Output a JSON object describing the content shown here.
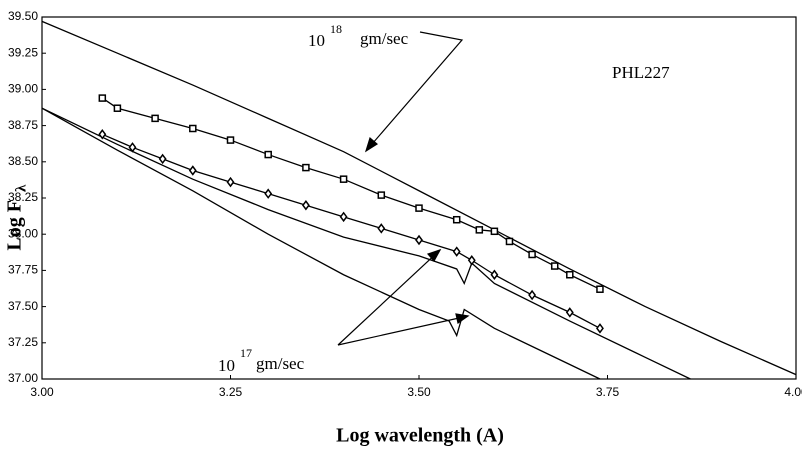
{
  "chart_data": {
    "type": "line",
    "x_label": "Log wavelength (A)",
    "y_label": {
      "text": "Log F",
      "sub": "λ"
    },
    "xlim": [
      3.0,
      4.0
    ],
    "ylim": [
      37.0,
      39.5
    ],
    "xticks": [
      {
        "value": 3.0,
        "label": "3.00"
      },
      {
        "value": 3.25,
        "label": "3.25"
      },
      {
        "value": 3.5,
        "label": "3.50"
      },
      {
        "value": 3.75,
        "label": "3.75"
      },
      {
        "value": 4.0,
        "label": "4.00"
      }
    ],
    "yticks": [
      {
        "value": 37.0,
        "label": "37.00"
      },
      {
        "value": 37.25,
        "label": "37.25"
      },
      {
        "value": 37.5,
        "label": "37.50"
      },
      {
        "value": 37.75,
        "label": "37.75"
      },
      {
        "value": 38.0,
        "label": "38.00"
      },
      {
        "value": 38.25,
        "label": "38.25"
      },
      {
        "value": 38.5,
        "label": "38.50"
      },
      {
        "value": 38.75,
        "label": "38.75"
      },
      {
        "value": 39.0,
        "label": "39.00"
      },
      {
        "value": 39.25,
        "label": "39.25"
      },
      {
        "value": 39.5,
        "label": "39.50"
      }
    ],
    "annotations": [
      {
        "text": "PHL227"
      },
      {
        "text": "10",
        "sup": "18",
        "unit": "gm/sec"
      },
      {
        "text": "10",
        "sup": "17",
        "unit": "gm/sec"
      }
    ],
    "series": [
      {
        "color": "#000000",
        "marker": "none",
        "x": [
          3.0,
          3.1,
          3.2,
          3.3,
          3.4,
          3.5,
          3.6,
          3.7,
          3.8,
          3.9,
          4.0
        ],
        "values": [
          39.47,
          39.25,
          39.03,
          38.8,
          38.57,
          38.3,
          38.03,
          37.76,
          37.5,
          37.26,
          37.03
        ]
      },
      {
        "color": "#000000",
        "marker": "none",
        "x": [
          3.0,
          3.1,
          3.2,
          3.3,
          3.4,
          3.5,
          3.55,
          3.56,
          3.57,
          3.6,
          3.7,
          3.8,
          3.86
        ],
        "values": [
          38.87,
          38.62,
          38.38,
          38.17,
          37.98,
          37.85,
          37.76,
          37.66,
          37.8,
          37.66,
          37.4,
          37.15,
          37.0
        ]
      },
      {
        "color": "#000000",
        "marker": "none",
        "x": [
          3.0,
          3.1,
          3.2,
          3.3,
          3.4,
          3.5,
          3.54,
          3.55,
          3.56,
          3.6,
          3.7,
          3.74
        ],
        "values": [
          38.87,
          38.58,
          38.3,
          38.0,
          37.72,
          37.48,
          37.4,
          37.3,
          37.48,
          37.35,
          37.1,
          37.0
        ]
      },
      {
        "color": "#000000",
        "marker": "square",
        "x": [
          3.08,
          3.1,
          3.15,
          3.2,
          3.25,
          3.3,
          3.35,
          3.4,
          3.45,
          3.5,
          3.55,
          3.58,
          3.6,
          3.62,
          3.65,
          3.68,
          3.7,
          3.74
        ],
        "values": [
          38.94,
          38.87,
          38.8,
          38.73,
          38.65,
          38.55,
          38.46,
          38.38,
          38.27,
          38.18,
          38.1,
          38.03,
          38.02,
          37.95,
          37.86,
          37.78,
          37.72,
          37.62
        ]
      },
      {
        "color": "#000000",
        "marker": "diamond",
        "x": [
          3.08,
          3.12,
          3.16,
          3.2,
          3.25,
          3.3,
          3.35,
          3.4,
          3.45,
          3.5,
          3.55,
          3.57,
          3.6,
          3.65,
          3.7,
          3.74
        ],
        "values": [
          38.69,
          38.6,
          38.52,
          38.44,
          38.36,
          38.28,
          38.2,
          38.12,
          38.04,
          37.96,
          37.88,
          37.82,
          37.72,
          37.58,
          37.46,
          37.35
        ]
      }
    ]
  }
}
